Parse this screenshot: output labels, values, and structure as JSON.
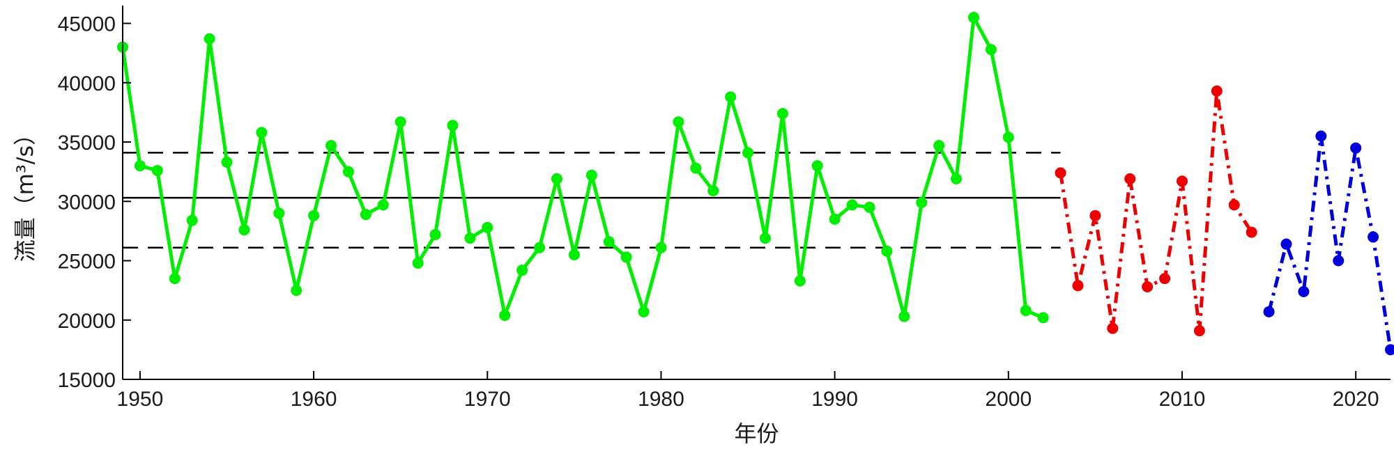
{
  "chart_data": {
    "type": "line",
    "xlabel": "年份",
    "ylabel": "流量（m³/s）",
    "xlim": [
      1949,
      2022
    ],
    "ylim": [
      15000,
      46500
    ],
    "xticks": [
      1950,
      1960,
      1970,
      1980,
      1990,
      2000,
      2010,
      2020
    ],
    "yticks": [
      15000,
      20000,
      25000,
      30000,
      35000,
      40000,
      45000
    ],
    "grid": false,
    "legend": "none",
    "series": [
      {
        "color": "#00ee00",
        "line_style": "solid",
        "marker": "circle",
        "x": [
          1949,
          1950,
          1951,
          1952,
          1953,
          1954,
          1955,
          1956,
          1957,
          1958,
          1959,
          1960,
          1961,
          1962,
          1963,
          1964,
          1965,
          1966,
          1967,
          1968,
          1969,
          1970,
          1971,
          1972,
          1973,
          1974,
          1975,
          1976,
          1977,
          1978,
          1979,
          1980,
          1981,
          1982,
          1983,
          1984,
          1985,
          1986,
          1987,
          1988,
          1989,
          1990,
          1991,
          1992,
          1993,
          1994,
          1995,
          1996,
          1997,
          1998,
          1999,
          2000,
          2001,
          2002
        ],
        "y": [
          43000,
          33000,
          32600,
          23500,
          28400,
          43700,
          33300,
          27600,
          35800,
          29000,
          22500,
          28800,
          34700,
          32500,
          28900,
          29700,
          36700,
          24800,
          27200,
          36400,
          26900,
          27800,
          20400,
          24200,
          26100,
          31900,
          25500,
          32200,
          26600,
          25300,
          20700,
          26100,
          36700,
          32800,
          30900,
          38800,
          34100,
          26900,
          37400,
          23300,
          33000,
          28500,
          29700,
          29500,
          25800,
          20300,
          29900,
          34700,
          31900,
          45500,
          42800,
          35400,
          20800,
          20200
        ]
      },
      {
        "color": "#ee0000",
        "line_style": "dashdot",
        "marker": "circle",
        "x": [
          2003,
          2004,
          2005,
          2006,
          2007,
          2008,
          2009,
          2010,
          2011,
          2012,
          2013,
          2014
        ],
        "y": [
          32400,
          22900,
          28800,
          19300,
          31900,
          22800,
          23500,
          31700,
          19100,
          39300,
          29700,
          27400
        ]
      },
      {
        "color": "#0000dd",
        "line_style": "dashdot",
        "marker": "circle",
        "x": [
          2015,
          2016,
          2017,
          2018,
          2019,
          2020,
          2021,
          2022
        ],
        "y": [
          20700,
          26400,
          22400,
          35500,
          25000,
          34500,
          27000,
          17500
        ]
      }
    ],
    "reference_lines": [
      {
        "y": 30300,
        "x_range": [
          1949,
          2003
        ],
        "color": "#000000",
        "line_style": "solid"
      },
      {
        "y": 34100,
        "x_range": [
          1949,
          2003
        ],
        "color": "#000000",
        "line_style": "dashed"
      },
      {
        "y": 26100,
        "x_range": [
          1949,
          2003
        ],
        "color": "#000000",
        "line_style": "dashed"
      }
    ]
  }
}
